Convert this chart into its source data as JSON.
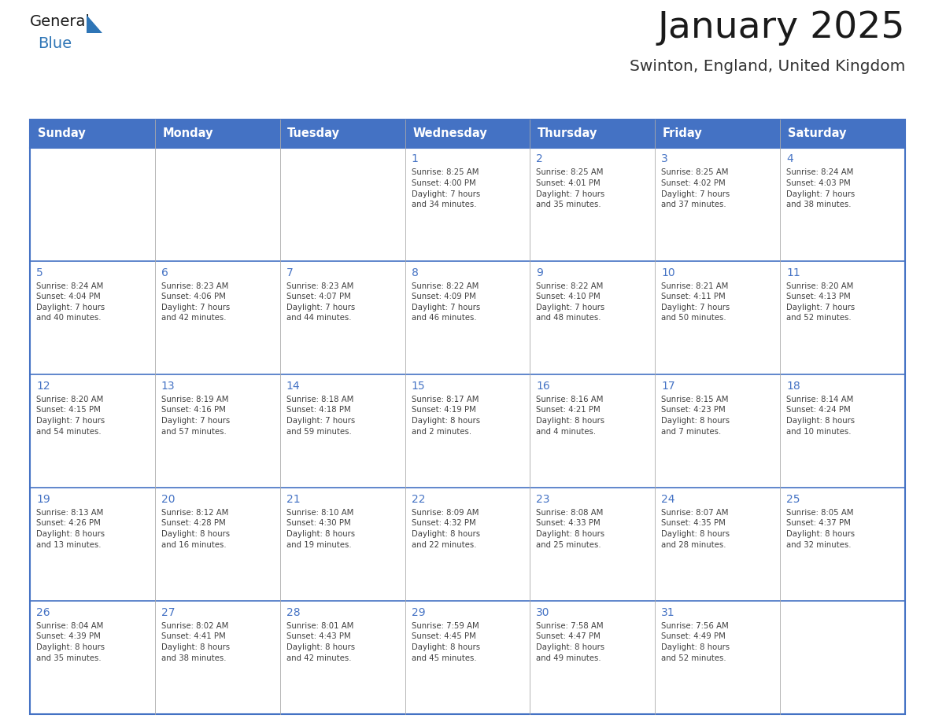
{
  "title": "January 2025",
  "subtitle": "Swinton, England, United Kingdom",
  "days_of_week": [
    "Sunday",
    "Monday",
    "Tuesday",
    "Wednesday",
    "Thursday",
    "Friday",
    "Saturday"
  ],
  "header_bg": "#4472C4",
  "header_text": "#FFFFFF",
  "cell_bg": "#FFFFFF",
  "day_num_color": "#4472C4",
  "text_color": "#404040",
  "border_color": "#4472C4",
  "row_line_color": "#4472C4",
  "col_line_color": "#AAAAAA",
  "logo_general_color": "#1A1A1A",
  "logo_blue_color": "#2E75B6",
  "logo_triangle_color": "#2E75B6",
  "calendar": [
    [
      {
        "day": null,
        "info": null
      },
      {
        "day": null,
        "info": null
      },
      {
        "day": null,
        "info": null
      },
      {
        "day": 1,
        "info": "Sunrise: 8:25 AM\nSunset: 4:00 PM\nDaylight: 7 hours\nand 34 minutes."
      },
      {
        "day": 2,
        "info": "Sunrise: 8:25 AM\nSunset: 4:01 PM\nDaylight: 7 hours\nand 35 minutes."
      },
      {
        "day": 3,
        "info": "Sunrise: 8:25 AM\nSunset: 4:02 PM\nDaylight: 7 hours\nand 37 minutes."
      },
      {
        "day": 4,
        "info": "Sunrise: 8:24 AM\nSunset: 4:03 PM\nDaylight: 7 hours\nand 38 minutes."
      }
    ],
    [
      {
        "day": 5,
        "info": "Sunrise: 8:24 AM\nSunset: 4:04 PM\nDaylight: 7 hours\nand 40 minutes."
      },
      {
        "day": 6,
        "info": "Sunrise: 8:23 AM\nSunset: 4:06 PM\nDaylight: 7 hours\nand 42 minutes."
      },
      {
        "day": 7,
        "info": "Sunrise: 8:23 AM\nSunset: 4:07 PM\nDaylight: 7 hours\nand 44 minutes."
      },
      {
        "day": 8,
        "info": "Sunrise: 8:22 AM\nSunset: 4:09 PM\nDaylight: 7 hours\nand 46 minutes."
      },
      {
        "day": 9,
        "info": "Sunrise: 8:22 AM\nSunset: 4:10 PM\nDaylight: 7 hours\nand 48 minutes."
      },
      {
        "day": 10,
        "info": "Sunrise: 8:21 AM\nSunset: 4:11 PM\nDaylight: 7 hours\nand 50 minutes."
      },
      {
        "day": 11,
        "info": "Sunrise: 8:20 AM\nSunset: 4:13 PM\nDaylight: 7 hours\nand 52 minutes."
      }
    ],
    [
      {
        "day": 12,
        "info": "Sunrise: 8:20 AM\nSunset: 4:15 PM\nDaylight: 7 hours\nand 54 minutes."
      },
      {
        "day": 13,
        "info": "Sunrise: 8:19 AM\nSunset: 4:16 PM\nDaylight: 7 hours\nand 57 minutes."
      },
      {
        "day": 14,
        "info": "Sunrise: 8:18 AM\nSunset: 4:18 PM\nDaylight: 7 hours\nand 59 minutes."
      },
      {
        "day": 15,
        "info": "Sunrise: 8:17 AM\nSunset: 4:19 PM\nDaylight: 8 hours\nand 2 minutes."
      },
      {
        "day": 16,
        "info": "Sunrise: 8:16 AM\nSunset: 4:21 PM\nDaylight: 8 hours\nand 4 minutes."
      },
      {
        "day": 17,
        "info": "Sunrise: 8:15 AM\nSunset: 4:23 PM\nDaylight: 8 hours\nand 7 minutes."
      },
      {
        "day": 18,
        "info": "Sunrise: 8:14 AM\nSunset: 4:24 PM\nDaylight: 8 hours\nand 10 minutes."
      }
    ],
    [
      {
        "day": 19,
        "info": "Sunrise: 8:13 AM\nSunset: 4:26 PM\nDaylight: 8 hours\nand 13 minutes."
      },
      {
        "day": 20,
        "info": "Sunrise: 8:12 AM\nSunset: 4:28 PM\nDaylight: 8 hours\nand 16 minutes."
      },
      {
        "day": 21,
        "info": "Sunrise: 8:10 AM\nSunset: 4:30 PM\nDaylight: 8 hours\nand 19 minutes."
      },
      {
        "day": 22,
        "info": "Sunrise: 8:09 AM\nSunset: 4:32 PM\nDaylight: 8 hours\nand 22 minutes."
      },
      {
        "day": 23,
        "info": "Sunrise: 8:08 AM\nSunset: 4:33 PM\nDaylight: 8 hours\nand 25 minutes."
      },
      {
        "day": 24,
        "info": "Sunrise: 8:07 AM\nSunset: 4:35 PM\nDaylight: 8 hours\nand 28 minutes."
      },
      {
        "day": 25,
        "info": "Sunrise: 8:05 AM\nSunset: 4:37 PM\nDaylight: 8 hours\nand 32 minutes."
      }
    ],
    [
      {
        "day": 26,
        "info": "Sunrise: 8:04 AM\nSunset: 4:39 PM\nDaylight: 8 hours\nand 35 minutes."
      },
      {
        "day": 27,
        "info": "Sunrise: 8:02 AM\nSunset: 4:41 PM\nDaylight: 8 hours\nand 38 minutes."
      },
      {
        "day": 28,
        "info": "Sunrise: 8:01 AM\nSunset: 4:43 PM\nDaylight: 8 hours\nand 42 minutes."
      },
      {
        "day": 29,
        "info": "Sunrise: 7:59 AM\nSunset: 4:45 PM\nDaylight: 8 hours\nand 45 minutes."
      },
      {
        "day": 30,
        "info": "Sunrise: 7:58 AM\nSunset: 4:47 PM\nDaylight: 8 hours\nand 49 minutes."
      },
      {
        "day": 31,
        "info": "Sunrise: 7:56 AM\nSunset: 4:49 PM\nDaylight: 8 hours\nand 52 minutes."
      },
      {
        "day": null,
        "info": null
      }
    ]
  ]
}
